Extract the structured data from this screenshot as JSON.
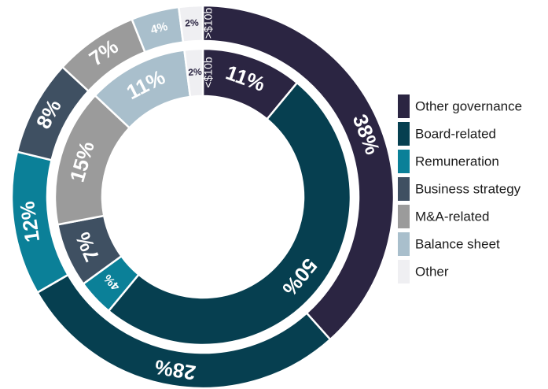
{
  "chart_data": {
    "type": "donut",
    "categories": [
      "Other governance",
      "Board-related",
      "Remuneration",
      "Business strategy",
      "M&A-related",
      "Balance sheet",
      "Other"
    ],
    "colors": [
      "#2b2542",
      "#063f50",
      "#0b8098",
      "#3f5062",
      "#9b9b9b",
      "#a9bfcc",
      "#efeff2"
    ],
    "series": [
      {
        "name": ">$10b",
        "values": [
          38,
          28,
          12,
          8,
          7,
          4,
          2
        ],
        "value_labels": [
          "38%",
          "28%",
          "12%",
          "8%",
          "7%",
          "4%",
          "2%"
        ]
      },
      {
        "name": "<$10b",
        "values": [
          11,
          50,
          4,
          7,
          15,
          11,
          2
        ],
        "value_labels": [
          "11%",
          "50%",
          "4%",
          "7%",
          "15%",
          "11%",
          "2%"
        ]
      }
    ]
  }
}
